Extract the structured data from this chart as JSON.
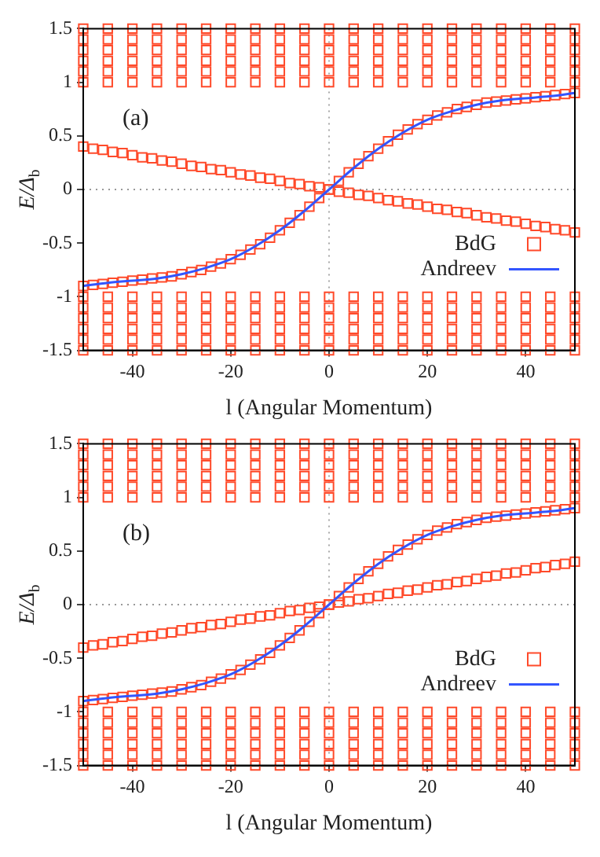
{
  "chart_data": [
    {
      "type": "scatter",
      "xlabel": "l (Angular Momentum)",
      "ylabel": "E/Δ$_{b}$",
      "annotations": [
        "(a)"
      ],
      "legend": "bottom right",
      "marker": "square",
      "grid": false,
      "x": [
        -50,
        -45,
        -40,
        -35,
        -30,
        -25,
        -20,
        -15,
        -10,
        -5,
        0,
        5,
        10,
        15,
        20,
        25,
        30,
        35,
        40,
        45,
        50
      ],
      "xlim": [
        -50,
        50
      ],
      "xticks": [
        -40,
        -20,
        0,
        20,
        40
      ],
      "ylim": [
        -1.5,
        1.5
      ],
      "yticks": [
        -1.5,
        -1,
        -0.5,
        0,
        0.5,
        1,
        1.5
      ],
      "ref_lines": [
        {
          "axis": "x",
          "value": 0,
          "color": "#aaaaaa",
          "line_style": "dotted"
        },
        {
          "axis": "y",
          "value": 0,
          "color": "#999999",
          "line_style": "dotted"
        }
      ],
      "series": [
        {
          "name": "BdG",
          "color": "#ff4a2a",
          "x": [
            -50,
            -48,
            -46,
            -44,
            -42,
            -40,
            -38,
            -36,
            -34,
            -32,
            -30,
            -28,
            -26,
            -24,
            -22,
            -20,
            -18,
            -16,
            -14,
            -12,
            -10,
            -8,
            -6,
            -4,
            -2,
            0,
            2,
            4,
            6,
            8,
            10,
            12,
            14,
            16,
            18,
            20,
            22,
            24,
            26,
            28,
            30,
            32,
            34,
            36,
            38,
            40,
            42,
            44,
            46,
            48,
            50,
            -50,
            -48,
            -46,
            -44,
            -42,
            -40,
            -38,
            -36,
            -34,
            -32,
            -30,
            -28,
            -26,
            -24,
            -22,
            -20,
            -18,
            -16,
            -14,
            -12,
            -10,
            -8,
            -6,
            -4,
            -2,
            0,
            2,
            4,
            6,
            8,
            10,
            12,
            14,
            16,
            18,
            20,
            22,
            24,
            26,
            28,
            30,
            32,
            34,
            36,
            38,
            40,
            42,
            44,
            46,
            48,
            50
          ],
          "values": [
            -0.9,
            -0.89,
            -0.88,
            -0.87,
            -0.86,
            -0.85,
            -0.84,
            -0.83,
            -0.82,
            -0.81,
            -0.79,
            -0.77,
            -0.75,
            -0.72,
            -0.69,
            -0.65,
            -0.61,
            -0.56,
            -0.51,
            -0.45,
            -0.38,
            -0.31,
            -0.24,
            -0.16,
            -0.08,
            0,
            0.08,
            0.16,
            0.24,
            0.31,
            0.38,
            0.45,
            0.51,
            0.56,
            0.61,
            0.65,
            0.69,
            0.72,
            0.75,
            0.77,
            0.79,
            0.81,
            0.82,
            0.83,
            0.84,
            0.85,
            0.86,
            0.87,
            0.88,
            0.89,
            0.9,
            0.4,
            0.38,
            0.37,
            0.35,
            0.34,
            0.32,
            0.3,
            0.29,
            0.27,
            0.26,
            0.24,
            0.22,
            0.21,
            0.19,
            0.18,
            0.16,
            0.14,
            0.13,
            0.11,
            0.1,
            0.08,
            0.06,
            0.05,
            0.03,
            0.02,
            0,
            -0.02,
            -0.03,
            -0.05,
            -0.06,
            -0.08,
            -0.1,
            -0.11,
            -0.13,
            -0.14,
            -0.16,
            -0.18,
            -0.19,
            -0.21,
            -0.22,
            -0.24,
            -0.26,
            -0.27,
            -0.29,
            -0.3,
            -0.32,
            -0.34,
            -0.35,
            -0.37,
            -0.38,
            -0.4
          ]
        },
        {
          "color": "#ff4a2a",
          "values": [
            1,
            1,
            1,
            1,
            1,
            1,
            1,
            1,
            1,
            1,
            1,
            1,
            1,
            1,
            1,
            1,
            1,
            1,
            1,
            1,
            1
          ]
        },
        {
          "color": "#ff4a2a",
          "values": [
            1.1,
            1.1,
            1.1,
            1.1,
            1.1,
            1.1,
            1.1,
            1.1,
            1.1,
            1.1,
            1.1,
            1.1,
            1.1,
            1.1,
            1.1,
            1.1,
            1.1,
            1.1,
            1.1,
            1.1,
            1.1
          ]
        },
        {
          "color": "#ff4a2a",
          "values": [
            1.2,
            1.2,
            1.2,
            1.2,
            1.2,
            1.2,
            1.2,
            1.2,
            1.2,
            1.2,
            1.2,
            1.2,
            1.2,
            1.2,
            1.2,
            1.2,
            1.2,
            1.2,
            1.2,
            1.2,
            1.2
          ]
        },
        {
          "color": "#ff4a2a",
          "values": [
            1.3,
            1.3,
            1.3,
            1.3,
            1.3,
            1.3,
            1.3,
            1.3,
            1.3,
            1.3,
            1.3,
            1.3,
            1.3,
            1.3,
            1.3,
            1.3,
            1.3,
            1.3,
            1.3,
            1.3,
            1.3
          ]
        },
        {
          "color": "#ff4a2a",
          "values": [
            1.4,
            1.4,
            1.4,
            1.4,
            1.4,
            1.4,
            1.4,
            1.4,
            1.4,
            1.4,
            1.4,
            1.4,
            1.4,
            1.4,
            1.4,
            1.4,
            1.4,
            1.4,
            1.4,
            1.4,
            1.4
          ]
        },
        {
          "color": "#ff4a2a",
          "values": [
            1.5,
            1.5,
            1.5,
            1.5,
            1.5,
            1.5,
            1.5,
            1.5,
            1.5,
            1.5,
            1.5,
            1.5,
            1.5,
            1.5,
            1.5,
            1.5,
            1.5,
            1.5,
            1.5,
            1.5,
            1.5
          ]
        },
        {
          "color": "#ff4a2a",
          "values": [
            -1,
            -1,
            -1,
            -1,
            -1,
            -1,
            -1,
            -1,
            -1,
            -1,
            -1,
            -1,
            -1,
            -1,
            -1,
            -1,
            -1,
            -1,
            -1,
            -1,
            -1
          ]
        },
        {
          "color": "#ff4a2a",
          "values": [
            -1.1,
            -1.1,
            -1.1,
            -1.1,
            -1.1,
            -1.1,
            -1.1,
            -1.1,
            -1.1,
            -1.1,
            -1.1,
            -1.1,
            -1.1,
            -1.1,
            -1.1,
            -1.1,
            -1.1,
            -1.1,
            -1.1,
            -1.1,
            -1.1
          ]
        },
        {
          "color": "#ff4a2a",
          "values": [
            -1.2,
            -1.2,
            -1.2,
            -1.2,
            -1.2,
            -1.2,
            -1.2,
            -1.2,
            -1.2,
            -1.2,
            -1.2,
            -1.2,
            -1.2,
            -1.2,
            -1.2,
            -1.2,
            -1.2,
            -1.2,
            -1.2,
            -1.2,
            -1.2
          ]
        },
        {
          "color": "#ff4a2a",
          "values": [
            -1.3,
            -1.3,
            -1.3,
            -1.3,
            -1.3,
            -1.3,
            -1.3,
            -1.3,
            -1.3,
            -1.3,
            -1.3,
            -1.3,
            -1.3,
            -1.3,
            -1.3,
            -1.3,
            -1.3,
            -1.3,
            -1.3,
            -1.3,
            -1.3
          ]
        },
        {
          "color": "#ff4a2a",
          "values": [
            -1.4,
            -1.4,
            -1.4,
            -1.4,
            -1.4,
            -1.4,
            -1.4,
            -1.4,
            -1.4,
            -1.4,
            -1.4,
            -1.4,
            -1.4,
            -1.4,
            -1.4,
            -1.4,
            -1.4,
            -1.4,
            -1.4,
            -1.4,
            -1.4
          ]
        },
        {
          "color": "#ff4a2a",
          "values": [
            -1.5,
            -1.5,
            -1.5,
            -1.5,
            -1.5,
            -1.5,
            -1.5,
            -1.5,
            -1.5,
            -1.5,
            -1.5,
            -1.5,
            -1.5,
            -1.5,
            -1.5,
            -1.5,
            -1.5,
            -1.5,
            -1.5,
            -1.5,
            -1.5
          ]
        },
        {
          "name": "Andreev",
          "type": "line",
          "marker": "none",
          "color": "#3355ff",
          "values": [
            -0.9,
            -0.87,
            -0.85,
            -0.83,
            -0.79,
            -0.73,
            -0.65,
            -0.53,
            -0.38,
            -0.2,
            0,
            0.2,
            0.38,
            0.53,
            0.65,
            0.73,
            0.79,
            0.83,
            0.85,
            0.87,
            0.9
          ]
        }
      ]
    },
    {
      "type": "scatter",
      "xlabel": "l (Angular Momentum)",
      "ylabel": "E/Δ$_{b}$",
      "annotations": [
        "(b)"
      ],
      "legend": "bottom right",
      "marker": "square",
      "grid": false,
      "x": [
        -50,
        -45,
        -40,
        -35,
        -30,
        -25,
        -20,
        -15,
        -10,
        -5,
        0,
        5,
        10,
        15,
        20,
        25,
        30,
        35,
        40,
        45,
        50
      ],
      "xlim": [
        -50,
        50
      ],
      "xticks": [
        -40,
        -20,
        0,
        20,
        40
      ],
      "ylim": [
        -1.5,
        1.5
      ],
      "yticks": [
        -1.5,
        -1,
        -0.5,
        0,
        0.5,
        1,
        1.5
      ],
      "ref_lines": [
        {
          "axis": "x",
          "value": 0,
          "color": "#aaaaaa",
          "line_style": "dotted"
        },
        {
          "axis": "y",
          "value": 0,
          "color": "#999999",
          "line_style": "dotted"
        }
      ],
      "series": [
        {
          "name": "BdG",
          "color": "#ff4a2a",
          "x": [
            -50,
            -48,
            -46,
            -44,
            -42,
            -40,
            -38,
            -36,
            -34,
            -32,
            -30,
            -28,
            -26,
            -24,
            -22,
            -20,
            -18,
            -16,
            -14,
            -12,
            -10,
            -8,
            -6,
            -4,
            -2,
            0,
            2,
            4,
            6,
            8,
            10,
            12,
            14,
            16,
            18,
            20,
            22,
            24,
            26,
            28,
            30,
            32,
            34,
            36,
            38,
            40,
            42,
            44,
            46,
            48,
            50,
            -50,
            -48,
            -46,
            -44,
            -42,
            -40,
            -38,
            -36,
            -34,
            -32,
            -30,
            -28,
            -26,
            -24,
            -22,
            -20,
            -18,
            -16,
            -14,
            -12,
            -10,
            -8,
            -6,
            -4,
            -2,
            0,
            2,
            4,
            6,
            8,
            10,
            12,
            14,
            16,
            18,
            20,
            22,
            24,
            26,
            28,
            30,
            32,
            34,
            36,
            38,
            40,
            42,
            44,
            46,
            48,
            50
          ],
          "values": [
            -0.9,
            -0.89,
            -0.88,
            -0.87,
            -0.86,
            -0.85,
            -0.84,
            -0.83,
            -0.82,
            -0.81,
            -0.79,
            -0.77,
            -0.75,
            -0.72,
            -0.69,
            -0.65,
            -0.61,
            -0.56,
            -0.51,
            -0.45,
            -0.38,
            -0.31,
            -0.24,
            -0.16,
            -0.08,
            0,
            0.08,
            0.16,
            0.24,
            0.31,
            0.38,
            0.45,
            0.51,
            0.56,
            0.61,
            0.65,
            0.69,
            0.72,
            0.75,
            0.77,
            0.79,
            0.81,
            0.82,
            0.83,
            0.84,
            0.85,
            0.86,
            0.87,
            0.88,
            0.89,
            0.9,
            -0.4,
            -0.38,
            -0.37,
            -0.35,
            -0.34,
            -0.32,
            -0.3,
            -0.29,
            -0.27,
            -0.26,
            -0.24,
            -0.22,
            -0.21,
            -0.19,
            -0.18,
            -0.16,
            -0.14,
            -0.13,
            -0.11,
            -0.1,
            -0.08,
            -0.06,
            -0.05,
            -0.03,
            -0.02,
            0,
            0.02,
            0.03,
            0.05,
            0.06,
            0.08,
            0.1,
            0.11,
            0.13,
            0.14,
            0.16,
            0.18,
            0.19,
            0.21,
            0.22,
            0.24,
            0.26,
            0.27,
            0.29,
            0.3,
            0.32,
            0.34,
            0.35,
            0.37,
            0.38,
            0.4
          ]
        },
        {
          "color": "#ff4a2a",
          "values": [
            1,
            1,
            1,
            1,
            1,
            1,
            1,
            1,
            1,
            1,
            1,
            1,
            1,
            1,
            1,
            1,
            1,
            1,
            1,
            1,
            1
          ]
        },
        {
          "color": "#ff4a2a",
          "values": [
            1.1,
            1.1,
            1.1,
            1.1,
            1.1,
            1.1,
            1.1,
            1.1,
            1.1,
            1.1,
            1.1,
            1.1,
            1.1,
            1.1,
            1.1,
            1.1,
            1.1,
            1.1,
            1.1,
            1.1,
            1.1
          ]
        },
        {
          "color": "#ff4a2a",
          "values": [
            1.2,
            1.2,
            1.2,
            1.2,
            1.2,
            1.2,
            1.2,
            1.2,
            1.2,
            1.2,
            1.2,
            1.2,
            1.2,
            1.2,
            1.2,
            1.2,
            1.2,
            1.2,
            1.2,
            1.2,
            1.2
          ]
        },
        {
          "color": "#ff4a2a",
          "values": [
            1.3,
            1.3,
            1.3,
            1.3,
            1.3,
            1.3,
            1.3,
            1.3,
            1.3,
            1.3,
            1.3,
            1.3,
            1.3,
            1.3,
            1.3,
            1.3,
            1.3,
            1.3,
            1.3,
            1.3,
            1.3
          ]
        },
        {
          "color": "#ff4a2a",
          "values": [
            1.4,
            1.4,
            1.4,
            1.4,
            1.4,
            1.4,
            1.4,
            1.4,
            1.4,
            1.4,
            1.4,
            1.4,
            1.4,
            1.4,
            1.4,
            1.4,
            1.4,
            1.4,
            1.4,
            1.4,
            1.4
          ]
        },
        {
          "color": "#ff4a2a",
          "values": [
            1.5,
            1.5,
            1.5,
            1.5,
            1.5,
            1.5,
            1.5,
            1.5,
            1.5,
            1.5,
            1.5,
            1.5,
            1.5,
            1.5,
            1.5,
            1.5,
            1.5,
            1.5,
            1.5,
            1.5,
            1.5
          ]
        },
        {
          "color": "#ff4a2a",
          "values": [
            -1,
            -1,
            -1,
            -1,
            -1,
            -1,
            -1,
            -1,
            -1,
            -1,
            -1,
            -1,
            -1,
            -1,
            -1,
            -1,
            -1,
            -1,
            -1,
            -1,
            -1
          ]
        },
        {
          "color": "#ff4a2a",
          "values": [
            -1.1,
            -1.1,
            -1.1,
            -1.1,
            -1.1,
            -1.1,
            -1.1,
            -1.1,
            -1.1,
            -1.1,
            -1.1,
            -1.1,
            -1.1,
            -1.1,
            -1.1,
            -1.1,
            -1.1,
            -1.1,
            -1.1,
            -1.1,
            -1.1
          ]
        },
        {
          "color": "#ff4a2a",
          "values": [
            -1.2,
            -1.2,
            -1.2,
            -1.2,
            -1.2,
            -1.2,
            -1.2,
            -1.2,
            -1.2,
            -1.2,
            -1.2,
            -1.2,
            -1.2,
            -1.2,
            -1.2,
            -1.2,
            -1.2,
            -1.2,
            -1.2,
            -1.2,
            -1.2
          ]
        },
        {
          "color": "#ff4a2a",
          "values": [
            -1.3,
            -1.3,
            -1.3,
            -1.3,
            -1.3,
            -1.3,
            -1.3,
            -1.3,
            -1.3,
            -1.3,
            -1.3,
            -1.3,
            -1.3,
            -1.3,
            -1.3,
            -1.3,
            -1.3,
            -1.3,
            -1.3,
            -1.3,
            -1.3
          ]
        },
        {
          "color": "#ff4a2a",
          "values": [
            -1.4,
            -1.4,
            -1.4,
            -1.4,
            -1.4,
            -1.4,
            -1.4,
            -1.4,
            -1.4,
            -1.4,
            -1.4,
            -1.4,
            -1.4,
            -1.4,
            -1.4,
            -1.4,
            -1.4,
            -1.4,
            -1.4,
            -1.4,
            -1.4
          ]
        },
        {
          "color": "#ff4a2a",
          "values": [
            -1.5,
            -1.5,
            -1.5,
            -1.5,
            -1.5,
            -1.5,
            -1.5,
            -1.5,
            -1.5,
            -1.5,
            -1.5,
            -1.5,
            -1.5,
            -1.5,
            -1.5,
            -1.5,
            -1.5,
            -1.5,
            -1.5,
            -1.5,
            -1.5
          ]
        },
        {
          "name": "Andreev",
          "type": "line",
          "marker": "none",
          "color": "#3355ff",
          "values": [
            -0.9,
            -0.87,
            -0.85,
            -0.83,
            -0.79,
            -0.73,
            -0.65,
            -0.53,
            -0.38,
            -0.2,
            0,
            0.2,
            0.38,
            0.53,
            0.65,
            0.73,
            0.79,
            0.83,
            0.85,
            0.87,
            0.9
          ]
        }
      ]
    }
  ]
}
